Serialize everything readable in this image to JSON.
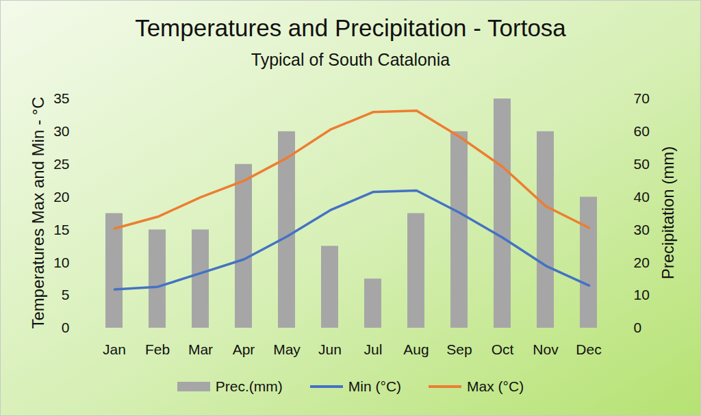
{
  "chart_data": {
    "type": "combo",
    "title": "Temperatures and Precipitation - Tortosa",
    "subtitle": "Typical of South Catalonia",
    "ylabel": "Temperatures Max and Min - °C",
    "y2label": "Precipitation (mm)",
    "categories": [
      "Jan",
      "Feb",
      "Mar",
      "Apr",
      "May",
      "Jun",
      "Jul",
      "Aug",
      "Sep",
      "Oct",
      "Nov",
      "Dec"
    ],
    "series": [
      {
        "name": "Prec.(mm)",
        "type": "bar",
        "axis": "y2",
        "color": "#a6a6a6",
        "values": [
          35,
          30,
          30,
          50,
          60,
          25,
          15,
          35,
          60,
          70,
          60,
          40
        ]
      },
      {
        "name": "Min (°C)",
        "type": "line",
        "color": "#4472c4",
        "values": [
          5.9,
          6.3,
          8.4,
          10.5,
          14,
          18,
          20.8,
          21,
          17.6,
          13.8,
          9.5,
          6.5
        ]
      },
      {
        "name": "Max (°C)",
        "type": "line",
        "color": "#ed7d31",
        "values": [
          15.2,
          17,
          20,
          22.5,
          26,
          30.3,
          33,
          33.2,
          29.2,
          24.6,
          18.6,
          15.3
        ]
      }
    ],
    "ylim": [
      0,
      35
    ],
    "yticks": [
      0,
      5,
      10,
      15,
      20,
      25,
      30,
      35
    ],
    "y2lim": [
      0,
      70
    ],
    "y2ticks": [
      0,
      10,
      20,
      30,
      40,
      50,
      60,
      70
    ],
    "grid": false,
    "legend": "bottom"
  }
}
